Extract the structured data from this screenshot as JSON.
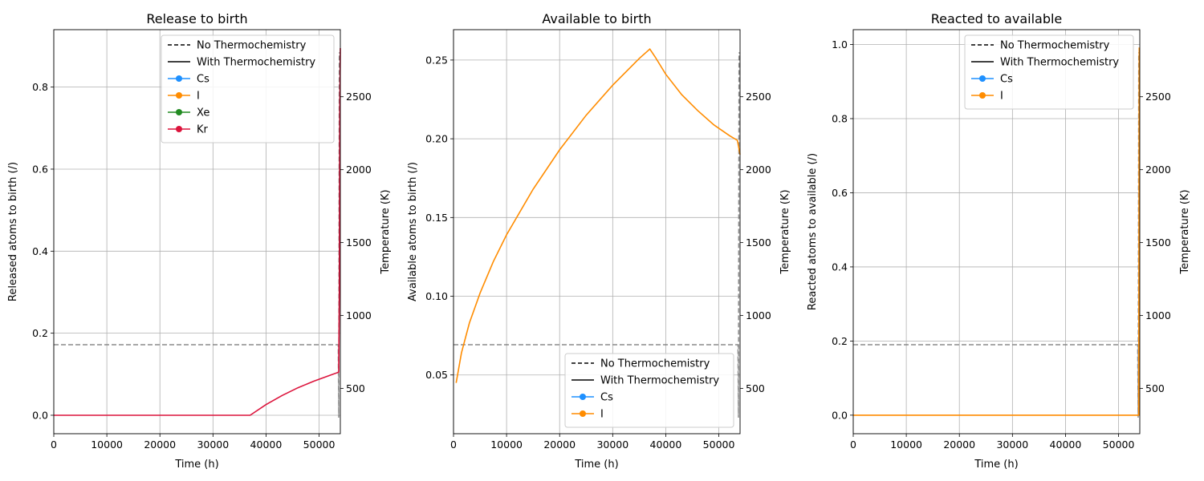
{
  "chart_data": [
    {
      "type": "line",
      "title": "Release to birth",
      "xlabel": "Time (h)",
      "ylabel": "Released atoms to birth (/)",
      "y2label": "Temperature (K)",
      "xlim": [
        0,
        54000
      ],
      "ylim": [
        -0.045,
        0.94
      ],
      "y2lim": [
        190,
        2960
      ],
      "xticks": [
        0,
        10000,
        20000,
        30000,
        40000,
        50000
      ],
      "xticklabels": [
        "0",
        "10000",
        "20000",
        "30000",
        "40000",
        "50000"
      ],
      "yticks": [
        0.0,
        0.2,
        0.4,
        0.6,
        0.8
      ],
      "yticklabels": [
        "0.0",
        "0.2",
        "0.4",
        "0.6",
        "0.8"
      ],
      "y2ticks": [
        500,
        1000,
        1500,
        2000,
        2500
      ],
      "y2ticklabels": [
        "500",
        "1000",
        "1500",
        "2000",
        "2500"
      ],
      "grid": true,
      "legend_position": "top-right",
      "legend": [
        {
          "label": "No Thermochemistry",
          "style": "dashed",
          "color": "#000000"
        },
        {
          "label": "With Thermochemistry",
          "style": "solid",
          "color": "#000000"
        },
        {
          "label": "Cs",
          "style": "marker",
          "color": "#1e90ff"
        },
        {
          "label": "I",
          "style": "marker",
          "color": "#ff8c00"
        },
        {
          "label": "Xe",
          "style": "marker",
          "color": "#228b22"
        },
        {
          "label": "Kr",
          "style": "marker",
          "color": "#dc143c"
        }
      ],
      "temperature": {
        "x": [
          0,
          53600,
          53700,
          53800,
          54000
        ],
        "y": [
          800,
          800,
          300,
          2800,
          2800
        ],
        "color": "#808080"
      },
      "series": [
        {
          "name": "Kr",
          "color": "#dc143c",
          "x": [
            0,
            37000,
            40000,
            43000,
            46000,
            49000,
            52000,
            53700,
            53800,
            53900,
            54000
          ],
          "y": [
            0,
            0,
            0.026,
            0.048,
            0.067,
            0.083,
            0.097,
            0.105,
            0.3,
            0.75,
            0.895
          ]
        }
      ]
    },
    {
      "type": "line",
      "title": "Available to birth",
      "xlabel": "Time (h)",
      "ylabel": "Available atoms to birth (/)",
      "y2label": "Temperature (K)",
      "xlim": [
        0,
        54000
      ],
      "ylim": [
        0.0127,
        0.2693
      ],
      "y2lim": [
        190,
        2960
      ],
      "xticks": [
        0,
        10000,
        20000,
        30000,
        40000,
        50000
      ],
      "xticklabels": [
        "0",
        "10000",
        "20000",
        "30000",
        "40000",
        "50000"
      ],
      "yticks": [
        0.05,
        0.1,
        0.15,
        0.2,
        0.25
      ],
      "yticklabels": [
        "0.05",
        "0.10",
        "0.15",
        "0.20",
        "0.25"
      ],
      "y2ticks": [
        500,
        1000,
        1500,
        2000,
        2500
      ],
      "y2ticklabels": [
        "500",
        "1000",
        "1500",
        "2000",
        "2500"
      ],
      "grid": true,
      "legend_position": "bottom-right",
      "legend": [
        {
          "label": "No Thermochemistry",
          "style": "dashed",
          "color": "#000000"
        },
        {
          "label": "With Thermochemistry",
          "style": "solid",
          "color": "#000000"
        },
        {
          "label": "Cs",
          "style": "marker",
          "color": "#1e90ff"
        },
        {
          "label": "I",
          "style": "marker",
          "color": "#ff8c00"
        }
      ],
      "temperature": {
        "x": [
          0,
          53600,
          53700,
          53800,
          54000
        ],
        "y": [
          800,
          800,
          300,
          2800,
          2800
        ],
        "color": "#808080"
      },
      "series": [
        {
          "name": "I",
          "color": "#ff8c00",
          "x": [
            500,
            1500,
            3000,
            5000,
            7500,
            10000,
            15000,
            20000,
            25000,
            30000,
            35000,
            37000,
            38000,
            40000,
            43000,
            46000,
            49000,
            52000,
            53500,
            54000
          ],
          "y": [
            0.045,
            0.064,
            0.083,
            0.102,
            0.122,
            0.139,
            0.168,
            0.193,
            0.215,
            0.234,
            0.251,
            0.257,
            0.252,
            0.241,
            0.228,
            0.218,
            0.209,
            0.202,
            0.199,
            0.19
          ]
        }
      ]
    },
    {
      "type": "line",
      "title": "Reacted to available",
      "xlabel": "Time (h)",
      "ylabel": "Reacted atoms to available (/)",
      "y2label": "Temperature (K)",
      "xlim": [
        0,
        54000
      ],
      "ylim": [
        -0.05,
        1.04
      ],
      "y2lim": [
        190,
        2960
      ],
      "xticks": [
        0,
        10000,
        20000,
        30000,
        40000,
        50000
      ],
      "xticklabels": [
        "0",
        "10000",
        "20000",
        "30000",
        "40000",
        "50000"
      ],
      "yticks": [
        0.0,
        0.2,
        0.4,
        0.6,
        0.8,
        1.0
      ],
      "yticklabels": [
        "0.0",
        "0.2",
        "0.4",
        "0.6",
        "0.8",
        "1.0"
      ],
      "y2ticks": [
        500,
        1000,
        1500,
        2000,
        2500
      ],
      "y2ticklabels": [
        "500",
        "1000",
        "1500",
        "2000",
        "2500"
      ],
      "grid": true,
      "legend_position": "top-right",
      "legend": [
        {
          "label": "No Thermochemistry",
          "style": "dashed",
          "color": "#000000"
        },
        {
          "label": "With Thermochemistry",
          "style": "solid",
          "color": "#000000"
        },
        {
          "label": "Cs",
          "style": "marker",
          "color": "#1e90ff"
        },
        {
          "label": "I",
          "style": "marker",
          "color": "#ff8c00"
        }
      ],
      "temperature": {
        "x": [
          0,
          53600,
          53700,
          53800,
          54000
        ],
        "y": [
          800,
          800,
          300,
          2800,
          2800
        ],
        "color": "#808080"
      },
      "series": [
        {
          "name": "I",
          "color": "#ff8c00",
          "x": [
            0,
            53800,
            53850,
            53900,
            54000
          ],
          "y": [
            0,
            0,
            0.5,
            0.99,
            0.99
          ]
        }
      ]
    }
  ]
}
